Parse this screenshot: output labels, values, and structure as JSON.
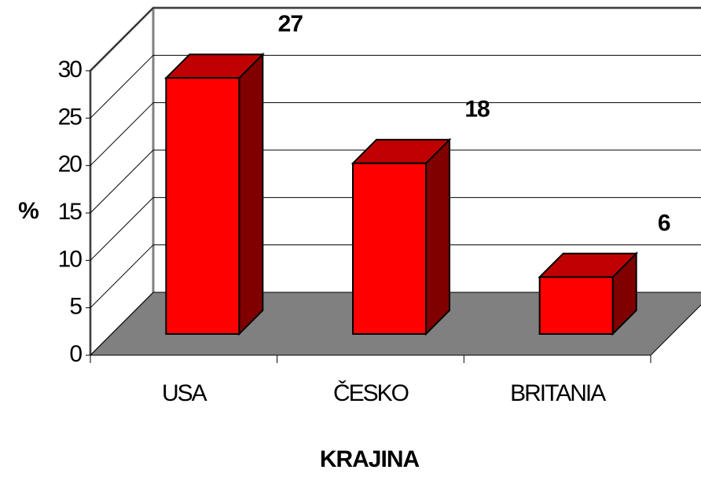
{
  "chart_data": {
    "type": "bar3d",
    "categories": [
      "USA",
      "ČESKO",
      "BRITANIA"
    ],
    "values": [
      27,
      18,
      6
    ],
    "color": "#ff0000",
    "side_color": "#800000",
    "top_color": "#c00000",
    "floor_color": "#808080",
    "ylabel": "%",
    "xlabel": "KRAJINA",
    "ylim": [
      0,
      30
    ],
    "yticks": [
      0,
      5,
      10,
      15,
      20,
      25,
      30
    ],
    "grid": true
  }
}
